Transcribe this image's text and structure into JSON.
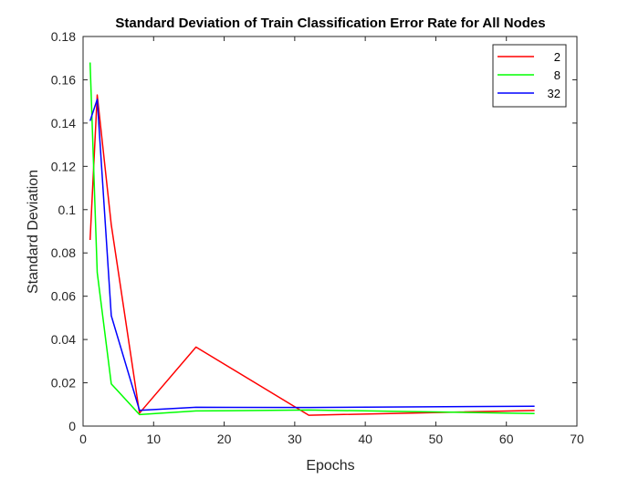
{
  "chart_data": {
    "type": "line",
    "title": "Standard Deviation of Train Classification Error Rate for All Nodes",
    "xlabel": "Epochs",
    "ylabel": "Standard Deviation",
    "xlim": [
      0,
      70
    ],
    "ylim": [
      0,
      0.18
    ],
    "xticks": [
      0,
      10,
      20,
      30,
      40,
      50,
      60,
      70
    ],
    "yticks": [
      0,
      0.02,
      0.04,
      0.06,
      0.08,
      0.1,
      0.12,
      0.14,
      0.16,
      0.18
    ],
    "xtick_labels": [
      "0",
      "10",
      "20",
      "30",
      "40",
      "50",
      "60",
      "70"
    ],
    "ytick_labels": [
      "0",
      "0.02",
      "0.04",
      "0.06",
      "0.08",
      "0.1",
      "0.12",
      "0.14",
      "0.16",
      "0.18"
    ],
    "grid": false,
    "legend_position": "top-right",
    "series": [
      {
        "name": "2",
        "color": "#ff0000",
        "x": [
          1,
          2,
          4,
          8,
          16,
          32,
          64
        ],
        "y": [
          0.086,
          0.153,
          0.093,
          0.006,
          0.0365,
          0.005,
          0.0072
        ]
      },
      {
        "name": "8",
        "color": "#00ff00",
        "x": [
          1,
          2,
          4,
          8,
          16,
          32,
          64
        ],
        "y": [
          0.168,
          0.071,
          0.0195,
          0.0053,
          0.007,
          0.0074,
          0.0058
        ]
      },
      {
        "name": "32",
        "color": "#0000ff",
        "x": [
          1,
          2,
          4,
          8,
          16,
          32,
          64
        ],
        "y": [
          0.141,
          0.151,
          0.051,
          0.0073,
          0.0087,
          0.0086,
          0.0092
        ]
      }
    ]
  }
}
